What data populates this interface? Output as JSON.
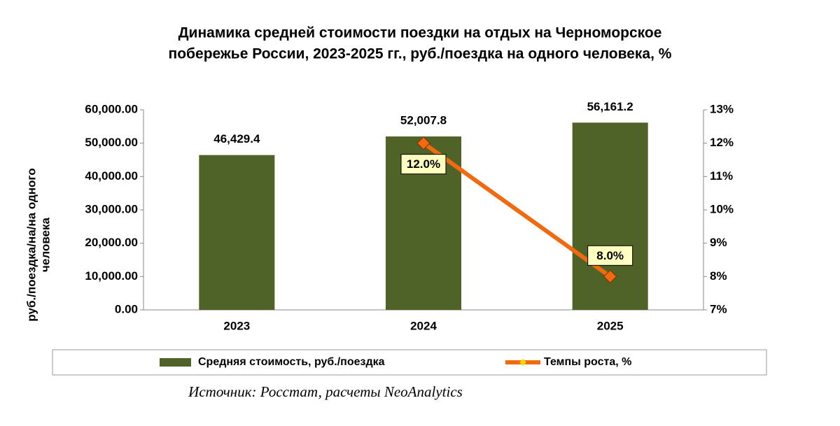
{
  "chart_data": {
    "type": "bar",
    "title": [
      "Динамика средней стоимости поездки на отдых на Черноморское",
      "побережье России, 2023-2025 гг., руб./поездка на одного человека, %"
    ],
    "ylabel": [
      "руб./поездка/на/на одного",
      "человека"
    ],
    "source": "Источник: Росстат, расчеты NeoAnalytics",
    "categories": [
      "2023",
      "2024",
      "2025"
    ],
    "series": [
      {
        "name": "Средняя стоимость, руб./поездка",
        "type": "bar",
        "color": "#4f6228",
        "values": [
          46429.4,
          52007.8,
          56161.2
        ],
        "value_labels": [
          "46,429.4",
          "52,007.8",
          "56,161.2"
        ]
      },
      {
        "name": "Темпы роста, %",
        "type": "line",
        "axis": "y2",
        "color": "#f26a10",
        "values": [
          null,
          12.0,
          8.0
        ],
        "value_labels": [
          null,
          "12.0%",
          "8.0%"
        ]
      }
    ],
    "ylim": [
      0,
      60000
    ],
    "yticks": [
      {
        "value": 0,
        "label": "0.00"
      },
      {
        "value": 10000,
        "label": "10,000.00"
      },
      {
        "value": 20000,
        "label": "20,000.00"
      },
      {
        "value": 30000,
        "label": "30,000.00"
      },
      {
        "value": 40000,
        "label": "40,000.00"
      },
      {
        "value": 50000,
        "label": "50,000.00"
      },
      {
        "value": 60000,
        "label": "60,000.00"
      }
    ],
    "y2lim": [
      7,
      13
    ],
    "y2ticks": [
      {
        "value": 7,
        "label": "7%"
      },
      {
        "value": 8,
        "label": "8%"
      },
      {
        "value": 9,
        "label": "9%"
      },
      {
        "value": 10,
        "label": "10%"
      },
      {
        "value": 11,
        "label": "11%"
      },
      {
        "value": 12,
        "label": "12%"
      },
      {
        "value": 13,
        "label": "13%"
      }
    ],
    "grid": false,
    "legend": "bottom"
  }
}
